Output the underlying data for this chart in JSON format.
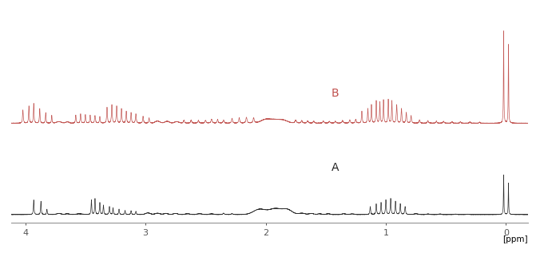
{
  "xlim": [
    4.12,
    -0.18
  ],
  "bg_color": "#ffffff",
  "color_A": "#222222",
  "color_B": "#c0504d",
  "label_A": "A",
  "label_B": "B",
  "label_fontsize": 10,
  "xlabel": "[ppm]",
  "xticks": [
    4,
    3,
    2,
    1,
    0
  ],
  "xtick_labels": [
    "4",
    "3",
    "2",
    "1",
    "0"
  ],
  "noise_scale_A": 0.003,
  "noise_scale_B": 0.004
}
